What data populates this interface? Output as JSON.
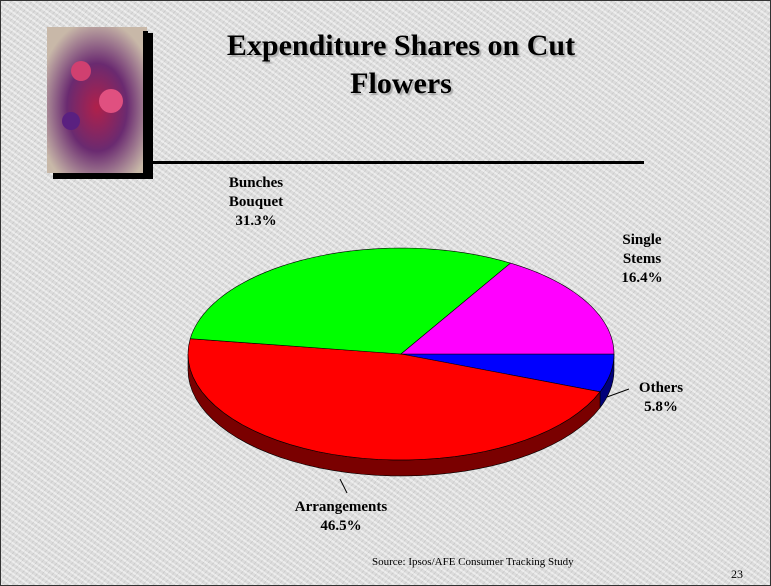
{
  "chart_data": {
    "type": "pie",
    "title": "Expenditure Shares on Cut Flowers",
    "categories": [
      "Others",
      "Arrangements",
      "Bunches Bouquet",
      "Single Stems"
    ],
    "values": [
      5.8,
      46.5,
      31.3,
      16.4
    ],
    "value_labels": [
      "5.8%",
      "46.5%",
      "31.3%",
      "16.4%"
    ],
    "colors": [
      "#0000ff",
      "#ff0000",
      "#00ff00",
      "#ff00ff"
    ],
    "side_colors": [
      "#00007a",
      "#7a0000",
      "#007a00",
      "#7a007a"
    ],
    "source": "Source: Ipsos/AFE Consumer Tracking Study"
  },
  "slide": {
    "page_number": "23"
  }
}
